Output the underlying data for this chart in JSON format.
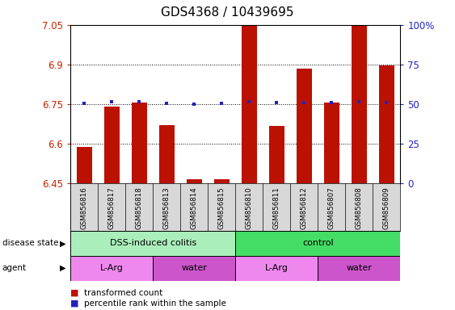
{
  "title": "GDS4368 / 10439695",
  "samples": [
    "GSM856816",
    "GSM856817",
    "GSM856818",
    "GSM856813",
    "GSM856814",
    "GSM856815",
    "GSM856810",
    "GSM856811",
    "GSM856812",
    "GSM856807",
    "GSM856808",
    "GSM856809"
  ],
  "bar_values": [
    6.585,
    6.74,
    6.755,
    6.67,
    6.465,
    6.465,
    7.05,
    6.665,
    6.885,
    6.755,
    7.045,
    6.895
  ],
  "percentile_values": [
    6.752,
    6.757,
    6.758,
    6.752,
    6.748,
    6.752,
    6.758,
    6.756,
    6.756,
    6.756,
    6.758,
    6.756
  ],
  "ylim": [
    6.45,
    7.05
  ],
  "yticks": [
    6.45,
    6.6,
    6.75,
    6.9,
    7.05
  ],
  "ytick_labels": [
    "6.45",
    "6.6",
    "6.75",
    "6.9",
    "7.05"
  ],
  "right_yticks": [
    0,
    25,
    50,
    75,
    100
  ],
  "right_ytick_labels": [
    "0",
    "25",
    "50",
    "75",
    "100%"
  ],
  "bar_color": "#BB1100",
  "percentile_color": "#2222BB",
  "disease_state_groups": [
    {
      "label": "DSS-induced colitis",
      "start": 0,
      "end": 6,
      "color": "#AAEEBB"
    },
    {
      "label": "control",
      "start": 6,
      "end": 12,
      "color": "#44DD66"
    }
  ],
  "agent_groups": [
    {
      "label": "L-Arg",
      "start": 0,
      "end": 3,
      "color": "#EE88EE"
    },
    {
      "label": "water",
      "start": 3,
      "end": 6,
      "color": "#CC55CC"
    },
    {
      "label": "L-Arg",
      "start": 6,
      "end": 9,
      "color": "#EE88EE"
    },
    {
      "label": "water",
      "start": 9,
      "end": 12,
      "color": "#CC55CC"
    }
  ],
  "legend_items": [
    {
      "label": "transformed count",
      "color": "#BB1100"
    },
    {
      "label": "percentile rank within the sample",
      "color": "#2222BB"
    }
  ],
  "label_disease_state": "disease state",
  "label_agent": "agent",
  "ax_bg": "#FFFFFF",
  "grid_lines": [
    6.6,
    6.75,
    6.9
  ]
}
